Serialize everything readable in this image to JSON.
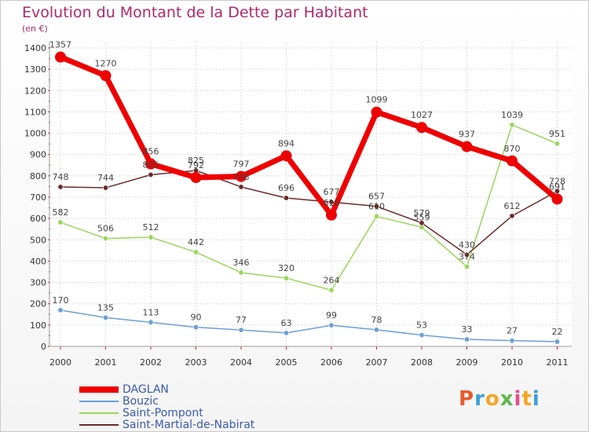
{
  "title": "Evolution du Montant de la Dette par Habitant",
  "subtitle": "(en €)",
  "logo": {
    "text": "Proxiti",
    "colors": [
      "#e85b2a",
      "#3aa0d8",
      "#f2a623",
      "#5cb84a",
      "#e84a8c",
      "#f2a623",
      "#3aa0d8"
    ]
  },
  "chart_data": {
    "type": "line",
    "x": [
      "2000",
      "2001",
      "2002",
      "2003",
      "2004",
      "2005",
      "2006",
      "2007",
      "2008",
      "2009",
      "2010",
      "2011"
    ],
    "ylim": [
      0,
      1400
    ],
    "yticks": [
      0,
      100,
      200,
      300,
      400,
      500,
      600,
      700,
      800,
      900,
      1000,
      1100,
      1200,
      1300,
      1400
    ],
    "grid": true,
    "legend_position": "bottom-left",
    "series": [
      {
        "name": "DAGLAN",
        "color": "#ee0000",
        "values": [
          1357,
          1270,
          856,
          792,
          797,
          894,
          616,
          1099,
          1027,
          937,
          870,
          691
        ]
      },
      {
        "name": "Bouzic",
        "color": "#6a9fd6",
        "values": [
          170,
          135,
          113,
          90,
          77,
          63,
          99,
          78,
          53,
          33,
          27,
          22
        ]
      },
      {
        "name": "Saint-Pompont",
        "color": "#99d65c",
        "values": [
          582,
          506,
          512,
          442,
          346,
          320,
          264,
          610,
          559,
          374,
          1039,
          951
        ]
      },
      {
        "name": "Saint-Martial-de-Nabirat",
        "color": "#6b2a2a",
        "values": [
          748,
          744,
          805,
          825,
          748,
          696,
          677,
          657,
          579,
          430,
          612,
          728
        ]
      }
    ],
    "data_labels": [
      [
        "1357",
        "1270",
        "856",
        "792",
        "797",
        "894",
        "616",
        "1099",
        "1027",
        "937",
        "870",
        "691"
      ],
      [
        "170",
        "135",
        "113",
        "90",
        "77",
        "63",
        "99",
        "78",
        "53",
        "33",
        "27",
        "22"
      ],
      [
        "582",
        "506",
        "512",
        "442",
        "346",
        "320",
        "264",
        "610",
        "559",
        "374",
        "1039",
        "951"
      ],
      [
        "748",
        "744",
        "805",
        "825",
        "748",
        "696",
        "677",
        "657",
        "579",
        "430",
        "612",
        "728"
      ]
    ]
  }
}
